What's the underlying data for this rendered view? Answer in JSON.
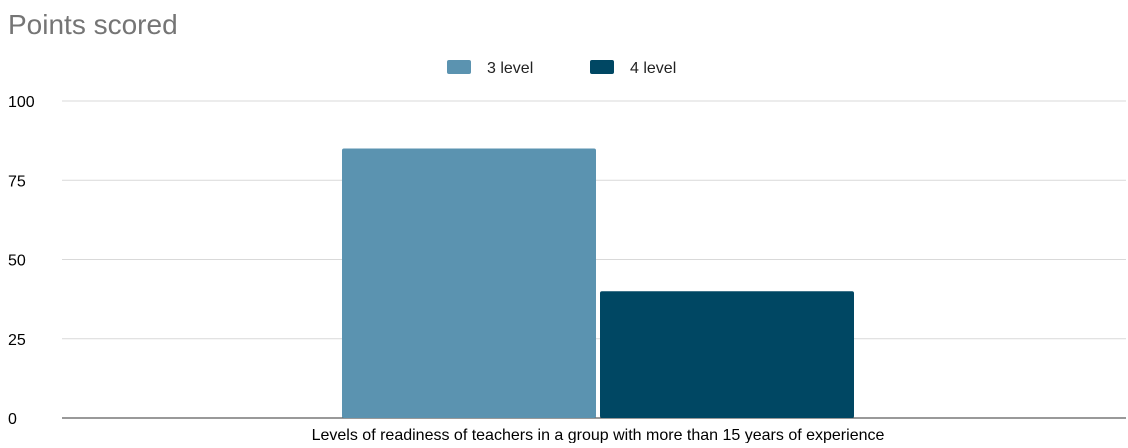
{
  "chart_data": {
    "type": "bar",
    "title": "Points scored",
    "categories": [
      "Levels of readiness of teachers in a group with more than 15 years of experience"
    ],
    "xlabel": "Levels of readiness of teachers in a group with more than 15 years of experience",
    "ylabel": "",
    "ylim": [
      0,
      100
    ],
    "yticks": [
      0,
      25,
      50,
      75,
      100
    ],
    "grid": true,
    "legend_position": "top-center",
    "series": [
      {
        "name": "3 level",
        "values": [
          85
        ],
        "color": "#5b93b0"
      },
      {
        "name": "4 level",
        "values": [
          40
        ],
        "color": "#004763"
      }
    ]
  }
}
